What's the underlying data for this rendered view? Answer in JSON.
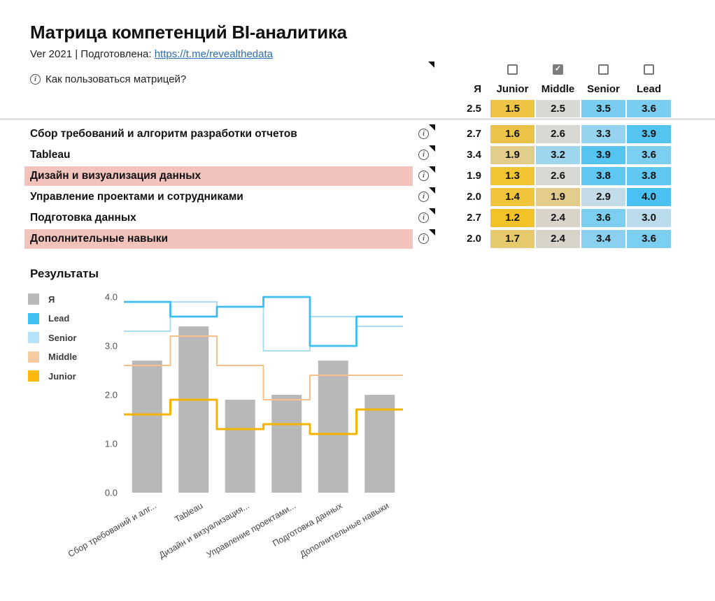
{
  "page": {
    "title": "Матрица компетенций BI-аналитика",
    "subtitle_prefix": "Ver 2021 | Подготовлена: ",
    "subtitle_link": "https://t.me/revealthedata",
    "help_text": "Как пользоваться матрицей?",
    "info_glyph": "i",
    "check_glyph": "✓"
  },
  "matrix": {
    "self_column": "Я",
    "self_total": "2.5",
    "highlight_color": "#f2c3bd",
    "levels": [
      {
        "label": "Junior",
        "checked": false,
        "total": "1.5",
        "total_color": "#edc443"
      },
      {
        "label": "Middle",
        "checked": true,
        "total": "2.5",
        "total_color": "#d8d8d4"
      },
      {
        "label": "Senior",
        "checked": false,
        "total": "3.5",
        "total_color": "#7bcdef"
      },
      {
        "label": "Lead",
        "checked": false,
        "total": "3.6",
        "total_color": "#7bcdef"
      }
    ],
    "rows": [
      {
        "label": "Сбор требований и алгоритм разработки отчетов",
        "highlight": false,
        "self": "2.7",
        "cells": [
          {
            "v": "1.6",
            "c": "#ebc348"
          },
          {
            "v": "2.6",
            "c": "#d7d7d3"
          },
          {
            "v": "3.3",
            "c": "#95d3ee"
          },
          {
            "v": "3.9",
            "c": "#55c4f1"
          }
        ]
      },
      {
        "label": "Tableau",
        "highlight": false,
        "self": "3.4",
        "cells": [
          {
            "v": "1.9",
            "c": "#e1cc8b"
          },
          {
            "v": "3.2",
            "c": "#9ed6ee"
          },
          {
            "v": "3.9",
            "c": "#55c4f1"
          },
          {
            "v": "3.6",
            "c": "#7cceef"
          }
        ]
      },
      {
        "label": "Дизайн и визуализация данных",
        "highlight": true,
        "self": "1.9",
        "cells": [
          {
            "v": "1.3",
            "c": "#f1c434"
          },
          {
            "v": "2.6",
            "c": "#d7d7d3"
          },
          {
            "v": "3.8",
            "c": "#60c7f1"
          },
          {
            "v": "3.8",
            "c": "#60c7f1"
          }
        ]
      },
      {
        "label": "Управление проектами и сотрудниками",
        "highlight": false,
        "self": "2.0",
        "cells": [
          {
            "v": "1.4",
            "c": "#f1c53a"
          },
          {
            "v": "1.9",
            "c": "#e1cc8b"
          },
          {
            "v": "2.9",
            "c": "#c3dce8"
          },
          {
            "v": "4.0",
            "c": "#4ac1f2"
          }
        ]
      },
      {
        "label": "Подготовка данных",
        "highlight": false,
        "self": "2.7",
        "cells": [
          {
            "v": "1.2",
            "c": "#f3c228"
          },
          {
            "v": "2.4",
            "c": "#d8d4c9"
          },
          {
            "v": "3.6",
            "c": "#7cceef"
          },
          {
            "v": "3.0",
            "c": "#badbeb"
          }
        ]
      },
      {
        "label": "Дополнительные навыки",
        "highlight": true,
        "self": "2.0",
        "cells": [
          {
            "v": "1.7",
            "c": "#e6ca6d"
          },
          {
            "v": "2.4",
            "c": "#d8d4c9"
          },
          {
            "v": "3.4",
            "c": "#8bd0ee"
          },
          {
            "v": "3.6",
            "c": "#7cceef"
          }
        ]
      }
    ]
  },
  "results": {
    "title": "Результаты",
    "legend": [
      {
        "label": "Я",
        "color": "#b8b8b8"
      },
      {
        "label": "Lead",
        "color": "#41c0f0"
      },
      {
        "label": "Senior",
        "color": "#b5e2f8"
      },
      {
        "label": "Middle",
        "color": "#f6cb9d"
      },
      {
        "label": "Junior",
        "color": "#fcb90b"
      }
    ]
  },
  "chart_data": {
    "type": "bar",
    "subtype": "bars-with-step-lines",
    "title": "Результаты",
    "categories": [
      "Сбор требований и алг...",
      "Tableau",
      "Дизайн и визуализация...",
      "Управление проектами...",
      "Подготовка данных",
      "Дополнительные навыки"
    ],
    "bars": {
      "name": "Я",
      "color": "#b8b8b8",
      "values": [
        2.7,
        3.4,
        1.9,
        2.0,
        2.7,
        2.0
      ]
    },
    "series": [
      {
        "name": "Senior",
        "color": "#abddf6",
        "width": 2,
        "values": [
          3.3,
          3.9,
          3.8,
          2.9,
          3.6,
          3.4
        ]
      },
      {
        "name": "Middle",
        "color": "#f5c18b",
        "width": 2,
        "values": [
          2.6,
          3.2,
          2.6,
          1.9,
          2.4,
          2.4
        ]
      },
      {
        "name": "Junior",
        "color": "#f5b301",
        "width": 3,
        "values": [
          1.6,
          1.9,
          1.3,
          1.4,
          1.2,
          1.7
        ]
      },
      {
        "name": "Lead",
        "color": "#3cbdf0",
        "width": 2.8,
        "values": [
          3.9,
          3.6,
          3.8,
          4.0,
          3.0,
          3.6
        ]
      }
    ],
    "yticks": [
      0.0,
      1.0,
      2.0,
      3.0,
      4.0
    ],
    "ylim": [
      0,
      4.07
    ],
    "grid": false,
    "legend_position": "left"
  }
}
